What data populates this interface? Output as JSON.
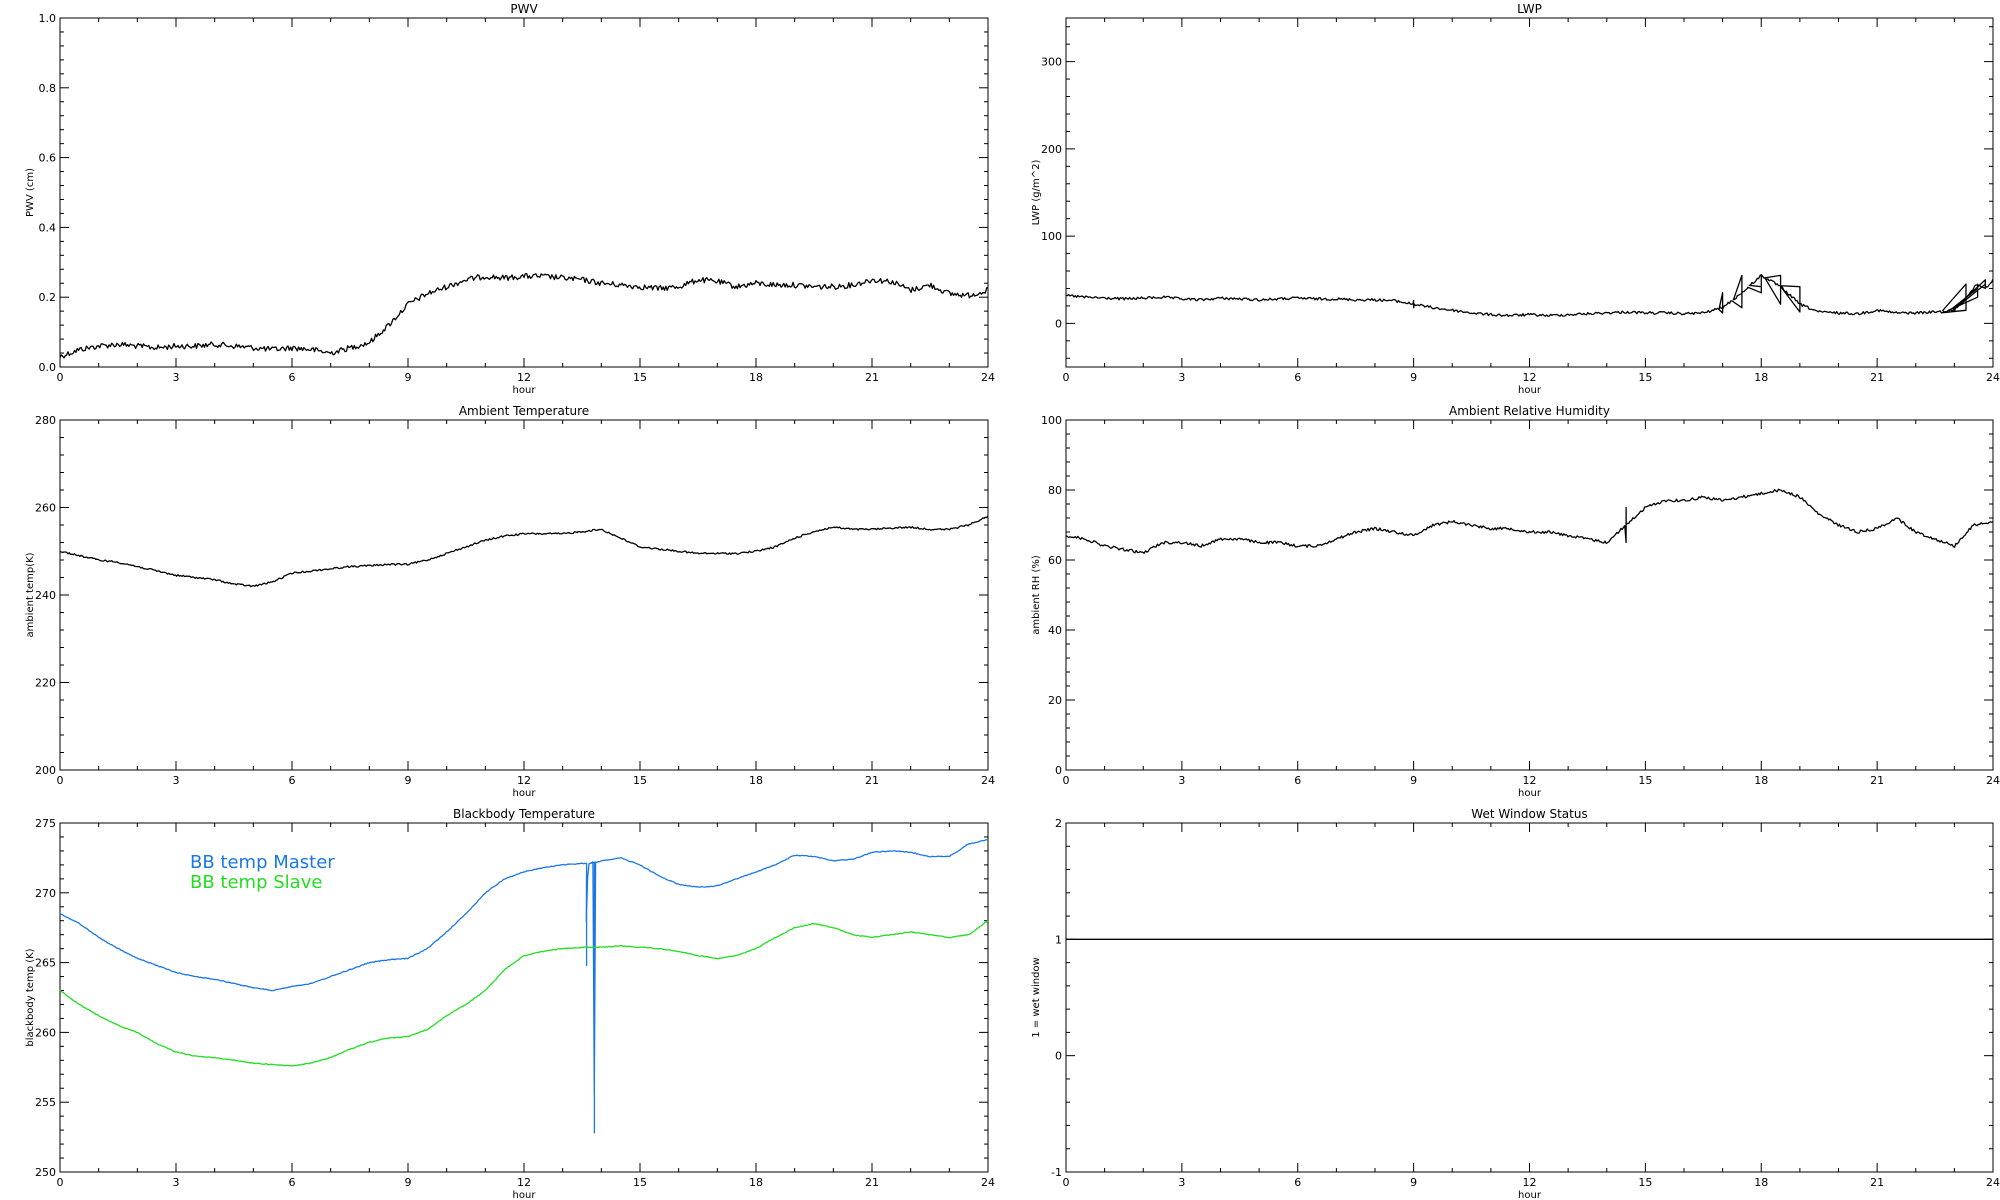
{
  "chart_data": [
    {
      "type": "line",
      "title": "PWV",
      "xlabel": "hour",
      "ylabel": "PWV (cm)",
      "xlim": [
        0,
        24
      ],
      "ylim": [
        0,
        1.0
      ],
      "xticks": [
        "0",
        "3",
        "6",
        "9",
        "12",
        "15",
        "18",
        "21",
        "24"
      ],
      "yticks": [
        "0.0",
        "0.2",
        "0.4",
        "0.6",
        "0.8",
        "1.0"
      ],
      "grid": false,
      "series": [
        {
          "color": "#000000",
          "noise": 0.008,
          "x": [
            0,
            0.5,
            1,
            1.5,
            2,
            2.5,
            3,
            3.5,
            4,
            4.5,
            5,
            5.5,
            6,
            6.5,
            7,
            7.5,
            8,
            8.5,
            9,
            9.5,
            10,
            10.5,
            11,
            11.5,
            12,
            12.5,
            13,
            13.5,
            14,
            14.5,
            15,
            15.5,
            16,
            16.5,
            17,
            17.5,
            18,
            18.5,
            19,
            19.5,
            20,
            20.5,
            21,
            21.5,
            22,
            22.5,
            23,
            23.5,
            24
          ],
          "y": [
            0.03,
            0.05,
            0.06,
            0.065,
            0.06,
            0.055,
            0.06,
            0.06,
            0.065,
            0.06,
            0.055,
            0.05,
            0.055,
            0.05,
            0.04,
            0.055,
            0.07,
            0.12,
            0.18,
            0.21,
            0.23,
            0.25,
            0.26,
            0.255,
            0.26,
            0.26,
            0.255,
            0.25,
            0.24,
            0.235,
            0.23,
            0.225,
            0.23,
            0.25,
            0.245,
            0.23,
            0.24,
            0.235,
            0.235,
            0.23,
            0.23,
            0.235,
            0.25,
            0.245,
            0.22,
            0.235,
            0.21,
            0.205,
            0.22
          ]
        }
      ]
    },
    {
      "type": "line",
      "title": "LWP",
      "xlabel": "hour",
      "ylabel": "LWP (g/m^2)",
      "xlim": [
        0,
        24
      ],
      "ylim": [
        -50,
        350
      ],
      "xticks": [
        "0",
        "3",
        "6",
        "9",
        "12",
        "15",
        "18",
        "21",
        "24"
      ],
      "yticks": [
        "0",
        "100",
        "200",
        "300"
      ],
      "ytick_values": [
        0,
        100,
        200,
        300
      ],
      "grid": false,
      "series": [
        {
          "color": "#000000",
          "noise": 1.5,
          "x": [
            0,
            0.5,
            1,
            1.5,
            2,
            2.5,
            3,
            3.5,
            4,
            4.5,
            5,
            5.5,
            6,
            6.5,
            7,
            7.5,
            8,
            8.5,
            9,
            9.5,
            10,
            10.5,
            11,
            11.5,
            12,
            12.5,
            13,
            13.5,
            14,
            14.5,
            15,
            15.5,
            16,
            16.5,
            17,
            17.5,
            18,
            18.5,
            19,
            19.5,
            20,
            20.5,
            21,
            21.5,
            22,
            22.5,
            23,
            23.3,
            23.6,
            23.8,
            24
          ],
          "y": [
            32,
            30,
            29,
            28,
            29,
            30,
            28,
            27,
            29,
            28,
            27,
            28,
            29,
            28,
            28,
            27,
            27,
            26,
            22,
            18,
            15,
            12,
            10,
            9,
            10,
            9,
            10,
            11,
            12,
            13,
            12,
            12,
            11,
            12,
            18,
            35,
            55,
            42,
            22,
            13,
            12,
            11,
            15,
            12,
            12,
            13,
            15,
            30,
            45,
            40,
            50
          ]
        }
      ]
    },
    {
      "type": "line",
      "title": "Ambient Temperature",
      "xlabel": "hour",
      "ylabel": "ambient temp(K)",
      "xlim": [
        0,
        24
      ],
      "ylim": [
        200,
        280
      ],
      "xticks": [
        "0",
        "3",
        "6",
        "9",
        "12",
        "15",
        "18",
        "21",
        "24"
      ],
      "yticks": [
        "200",
        "220",
        "240",
        "260",
        "280"
      ],
      "grid": false,
      "series": [
        {
          "color": "#000000",
          "noise": 0.2,
          "x": [
            0,
            0.5,
            1,
            1.5,
            2,
            2.5,
            3,
            3.5,
            4,
            4.5,
            5,
            5.5,
            6,
            6.5,
            7,
            7.5,
            8,
            8.5,
            9,
            9.5,
            10,
            10.5,
            11,
            11.5,
            12,
            12.5,
            13,
            13.5,
            14,
            14.5,
            15,
            15.5,
            16,
            16.5,
            17,
            17.5,
            18,
            18.5,
            19,
            19.5,
            20,
            20.5,
            21,
            21.5,
            22,
            22.5,
            23,
            23.5,
            24
          ],
          "y": [
            250,
            249,
            248,
            247.5,
            246.5,
            245.5,
            244.5,
            244,
            243.5,
            242.5,
            242,
            243,
            245,
            245.5,
            246,
            246.5,
            246.7,
            247,
            247,
            248,
            249.5,
            251,
            252.5,
            253.5,
            254,
            254,
            254,
            254.5,
            255,
            253,
            251,
            250.5,
            250,
            249.5,
            249.5,
            249.5,
            250,
            251,
            253,
            254.5,
            255.5,
            255,
            255,
            255.3,
            255.5,
            255,
            255,
            256,
            258
          ]
        }
      ]
    },
    {
      "type": "line",
      "title": "Ambient Relative Humidity",
      "xlabel": "hour",
      "ylabel": "ambient RH (%)",
      "xlim": [
        0,
        24
      ],
      "ylim": [
        0,
        100
      ],
      "xticks": [
        "0",
        "3",
        "6",
        "9",
        "12",
        "15",
        "18",
        "21",
        "24"
      ],
      "yticks": [
        "0",
        "20",
        "40",
        "60",
        "80",
        "100"
      ],
      "grid": false,
      "series": [
        {
          "color": "#000000",
          "noise": 0.4,
          "x": [
            0,
            0.5,
            1,
            1.5,
            2,
            2.5,
            3,
            3.5,
            4,
            4.5,
            5,
            5.5,
            6,
            6.5,
            7,
            7.5,
            8,
            8.5,
            9,
            9.5,
            10,
            10.5,
            11,
            11.5,
            12,
            12.5,
            13,
            13.5,
            14,
            14.5,
            15,
            15.5,
            16,
            16.5,
            17,
            17.5,
            18,
            18.5,
            19,
            19.5,
            20,
            20.5,
            21,
            21.5,
            22,
            22.5,
            23,
            23.5,
            24
          ],
          "y": [
            67,
            66,
            64,
            63,
            62,
            65,
            65,
            64,
            66,
            66,
            65,
            65,
            64,
            64,
            66,
            68,
            69,
            68,
            67,
            70,
            71,
            70,
            69,
            69,
            68,
            68,
            67,
            66,
            65,
            70,
            75,
            77,
            77,
            78,
            77,
            78,
            79,
            80,
            78,
            73,
            70,
            68,
            69,
            72,
            68,
            66,
            64,
            70,
            71
          ]
        }
      ]
    },
    {
      "type": "line",
      "title": "Blackbody Temperature",
      "xlabel": "hour",
      "ylabel": "blackbody temp (K)",
      "xlim": [
        0,
        24
      ],
      "ylim": [
        250,
        275
      ],
      "xticks": [
        "0",
        "3",
        "6",
        "9",
        "12",
        "15",
        "18",
        "21",
        "24"
      ],
      "yticks": [
        "250",
        "255",
        "260",
        "265",
        "270",
        "275"
      ],
      "grid": false,
      "legend_position": "top-left",
      "series": [
        {
          "name": "BB temp Master",
          "color": "#1a78e6",
          "noise": 0.03,
          "x": [
            0,
            0.5,
            1,
            1.5,
            2,
            2.5,
            3,
            3.5,
            4,
            4.5,
            5,
            5.5,
            6,
            6.5,
            7,
            7.5,
            8,
            8.5,
            9,
            9.5,
            10,
            10.5,
            11,
            11.5,
            12,
            12.5,
            13,
            13.5,
            13.6,
            13.62,
            13.65,
            13.7,
            13.8,
            13.82,
            13.85,
            13.9,
            14,
            14.5,
            15,
            15.5,
            16,
            16.5,
            17,
            17.5,
            18,
            18.5,
            19,
            19.5,
            20,
            20.5,
            21,
            21.5,
            22,
            22.5,
            23,
            23.5,
            24
          ],
          "y": [
            268.5,
            267.8,
            266.8,
            266,
            265.3,
            264.8,
            264.3,
            264,
            263.8,
            263.5,
            263.2,
            263,
            263.3,
            263.5,
            264,
            264.5,
            265,
            265.2,
            265.3,
            266,
            267.2,
            268.5,
            270,
            271,
            271.5,
            271.8,
            272,
            272.1,
            272.1,
            264.8,
            272.1,
            272.1,
            272.2,
            252.8,
            272.2,
            272.2,
            272.3,
            272.5,
            272,
            271.2,
            270.6,
            270.4,
            270.5,
            271,
            271.5,
            272,
            272.7,
            272.6,
            272.3,
            272.4,
            272.9,
            273,
            272.9,
            272.6,
            272.6,
            273.5,
            273.8
          ]
        },
        {
          "name": "BB temp Slave",
          "color": "#22dd22",
          "noise": 0.03,
          "x": [
            0,
            0.5,
            1,
            1.5,
            2,
            2.5,
            3,
            3.5,
            4,
            4.5,
            5,
            5.5,
            6,
            6.5,
            7,
            7.5,
            8,
            8.5,
            9,
            9.5,
            10,
            10.5,
            11,
            11.5,
            12,
            12.5,
            13,
            13.5,
            14,
            14.5,
            15,
            15.5,
            16,
            16.5,
            17,
            17.5,
            18,
            18.5,
            19,
            19.5,
            20,
            20.5,
            21,
            21.5,
            22,
            22.5,
            23,
            23.5,
            24
          ],
          "y": [
            263,
            262,
            261.2,
            260.5,
            260,
            259.2,
            258.6,
            258.3,
            258.2,
            258,
            257.8,
            257.7,
            257.6,
            257.8,
            258.2,
            258.8,
            259.3,
            259.6,
            259.7,
            260.2,
            261.2,
            262,
            263,
            264.5,
            265.5,
            265.8,
            266,
            266.1,
            266.1,
            266.2,
            266.1,
            266,
            265.8,
            265.5,
            265.3,
            265.5,
            266,
            266.8,
            267.5,
            267.8,
            267.5,
            267,
            266.8,
            267,
            267.2,
            267,
            266.8,
            267,
            268
          ]
        }
      ]
    },
    {
      "type": "line",
      "title": "Wet Window Status",
      "xlabel": "hour",
      "ylabel": "1 = wet window",
      "xlim": [
        0,
        24
      ],
      "ylim": [
        -1,
        2
      ],
      "xticks": [
        "0",
        "3",
        "6",
        "9",
        "12",
        "15",
        "18",
        "21",
        "24"
      ],
      "yticks": [
        "-1",
        "0",
        "1",
        "2"
      ],
      "grid": false,
      "series": [
        {
          "color": "#000000",
          "noise": 0,
          "x": [
            0,
            24
          ],
          "y": [
            1,
            1
          ]
        }
      ]
    }
  ]
}
